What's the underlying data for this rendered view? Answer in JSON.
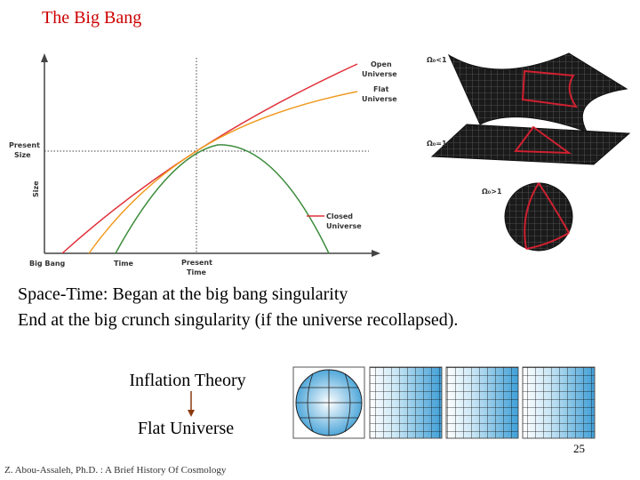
{
  "title": "The Big Bang",
  "figure": {
    "y_labels": {
      "present_size": [
        "Present",
        "Size"
      ],
      "axis": "Size"
    },
    "x_labels": {
      "start": "Big Bang",
      "time": "Time",
      "present_time": [
        "Present",
        "Time"
      ]
    },
    "curves": [
      {
        "lines": [
          "Open",
          "Universe"
        ]
      },
      {
        "lines": [
          "Flat",
          "Universe"
        ]
      },
      {
        "lines": [
          "Closed",
          "Universe"
        ]
      }
    ]
  },
  "geometry_labels": [
    "Ω₀<1",
    "Ω₀=1",
    "Ω₀>1"
  ],
  "body": [
    "Space-Time: Began at the big bang singularity",
    "End at the big crunch singularity (if the universe recollapsed)."
  ],
  "inflation": {
    "from": "Inflation Theory",
    "to": "Flat Universe"
  },
  "page_number": "25",
  "footer": "Z. Abou-Assaleh, Ph.D. :  A Brief History Of Cosmology"
}
